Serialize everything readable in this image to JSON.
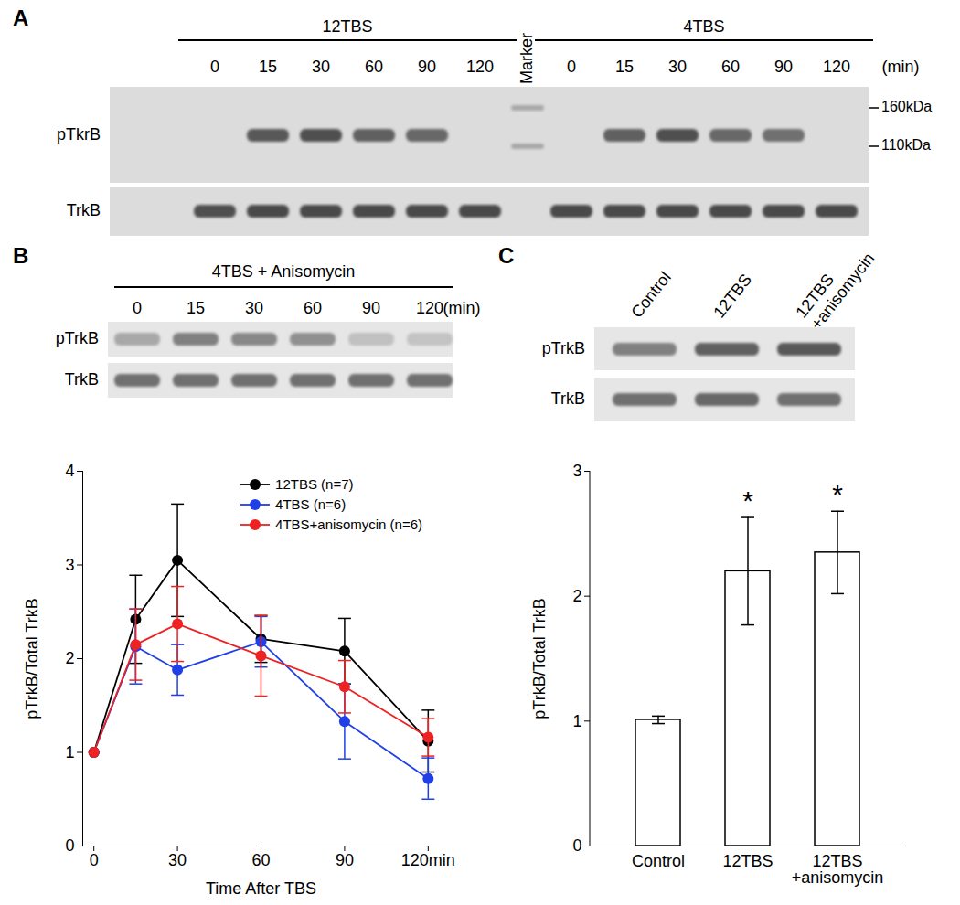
{
  "panel_labels": [
    "A",
    "B",
    "C"
  ],
  "blots": {
    "A": {
      "time_unit": "(min)",
      "marker_lane": "Marker",
      "marker_sizes": [
        "160kDa",
        "110kDa"
      ],
      "rows": [
        "pTkrB",
        "TrkB"
      ],
      "groups": [
        {
          "name": "12TBS",
          "times": [
            0,
            15,
            30,
            60,
            90,
            120
          ],
          "intensity": {
            "pTkrB": [
              0,
              0.75,
              0.8,
              0.7,
              0.65,
              0
            ],
            "TrkB": [
              0.8,
              0.85,
              0.85,
              0.85,
              0.85,
              0.85
            ]
          }
        },
        {
          "name": "4TBS",
          "times": [
            0,
            15,
            30,
            60,
            90,
            120
          ],
          "intensity": {
            "pTkrB": [
              0,
              0.7,
              0.8,
              0.65,
              0.6,
              0
            ],
            "TrkB": [
              0.85,
              0.85,
              0.85,
              0.85,
              0.85,
              0.85
            ]
          }
        }
      ]
    },
    "B": {
      "title": "4TBS + Anisomycin",
      "time_unit": "(min)",
      "times": [
        0,
        15,
        30,
        60,
        90,
        120
      ],
      "rows": [
        "pTrkB",
        "TrkB"
      ],
      "intensity": {
        "pTrkB": [
          0.25,
          0.5,
          0.45,
          0.4,
          0.1,
          0.08
        ],
        "TrkB": [
          0.6,
          0.6,
          0.6,
          0.6,
          0.6,
          0.6
        ]
      }
    },
    "C": {
      "lanes": [
        "Control",
        "12TBS",
        "12TBS\n+anisomycin"
      ],
      "rows": [
        "pTrkB",
        "TrkB"
      ],
      "intensity": {
        "pTrkB": [
          0.5,
          0.7,
          0.75
        ],
        "TrkB": [
          0.6,
          0.65,
          0.6
        ]
      }
    }
  },
  "chart_data": [
    {
      "type": "line",
      "x": [
        0,
        15,
        30,
        60,
        90,
        120
      ],
      "x_label": "Time After TBS",
      "y_label": "pTrkB/Total TrkB",
      "xlim": [
        -4,
        124
      ],
      "xticks": [
        0,
        30,
        60,
        90,
        {
          "value": 120,
          "label": "120min"
        }
      ],
      "ylim": [
        0,
        4
      ],
      "yticks": [
        0,
        1,
        2,
        3,
        4
      ],
      "marker": "circle",
      "legend": "top-right",
      "series": [
        {
          "name": "12TBS (n=7)",
          "color": "#000000",
          "values": [
            1,
            2.42,
            3.05,
            2.21,
            2.08,
            1.12
          ],
          "errors": [
            0,
            0.47,
            0.6,
            0.25,
            0.35,
            0.33
          ]
        },
        {
          "name": "4TBS (n=6)",
          "color": "#1f3fe8",
          "values": [
            1,
            2.13,
            1.88,
            2.18,
            1.33,
            0.72
          ],
          "errors": [
            0,
            0.4,
            0.27,
            0.27,
            0.4,
            0.22
          ]
        },
        {
          "name": "4TBS+anisomycin (n=6)",
          "color": "#ee2222",
          "values": [
            1,
            2.15,
            2.37,
            2.03,
            1.7,
            1.16
          ],
          "errors": [
            0,
            0.38,
            0.4,
            0.43,
            0.28,
            0.2
          ]
        }
      ]
    },
    {
      "type": "bar",
      "categories": [
        "Control",
        "12TBS",
        "12TBS\n+anisomycin"
      ],
      "values": [
        1.01,
        2.2,
        2.35
      ],
      "errors": [
        0.03,
        0.43,
        0.33
      ],
      "color": "#ffffff",
      "y_label": "pTrkB/Total TrkB",
      "ylim": [
        0,
        3
      ],
      "yticks": [
        0,
        1,
        2,
        3
      ],
      "annotations": [
        {
          "category": "12TBS",
          "text": "*"
        },
        {
          "category": "12TBS\n+anisomycin",
          "text": "*"
        }
      ]
    }
  ]
}
